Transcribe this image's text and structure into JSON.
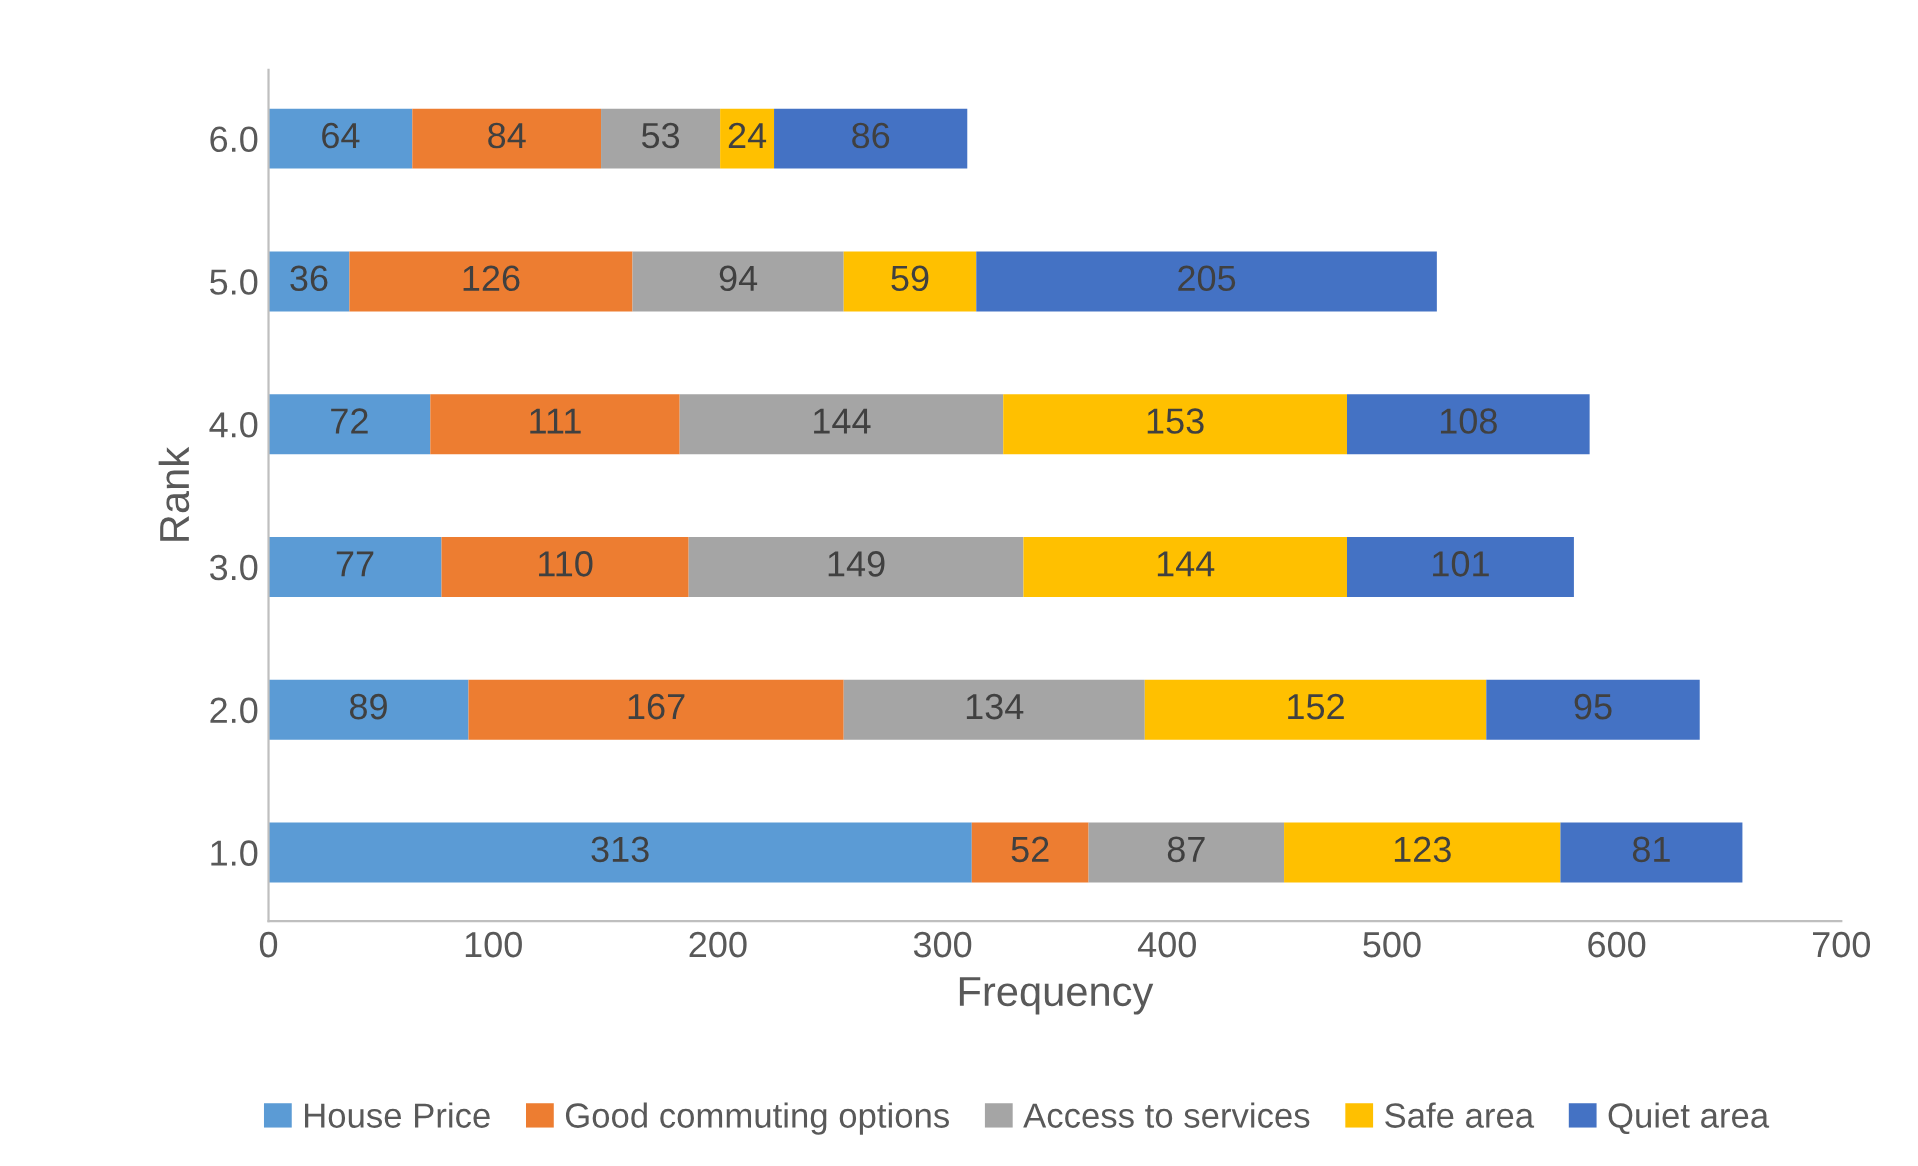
{
  "chart_data": {
    "type": "bar",
    "orientation": "horizontal",
    "stacked": true,
    "xlabel": "Frequency",
    "ylabel": "Rank",
    "categories": [
      "6.0",
      "5.0",
      "4.0",
      "3.0",
      "2.0",
      "1.0"
    ],
    "series": [
      {
        "name": "House Price",
        "color": "#5b9bd5",
        "values": [
          64,
          36,
          72,
          77,
          89,
          313
        ]
      },
      {
        "name": "Good commuting options",
        "color": "#ed7d31",
        "values": [
          84,
          126,
          111,
          110,
          167,
          52
        ]
      },
      {
        "name": "Access to services",
        "color": "#a5a5a5",
        "values": [
          53,
          94,
          144,
          149,
          134,
          87
        ]
      },
      {
        "name": "Safe area",
        "color": "#ffc000",
        "values": [
          24,
          59,
          153,
          144,
          152,
          123
        ]
      },
      {
        "name": "Quiet area",
        "color": "#4472c4",
        "values": [
          86,
          205,
          108,
          101,
          95,
          81
        ]
      }
    ],
    "xlim": [
      0,
      700
    ],
    "xticks": [
      0,
      100,
      200,
      300,
      400,
      500,
      600,
      700
    ],
    "data_labels": true,
    "legend": "bottom",
    "grid": false
  }
}
